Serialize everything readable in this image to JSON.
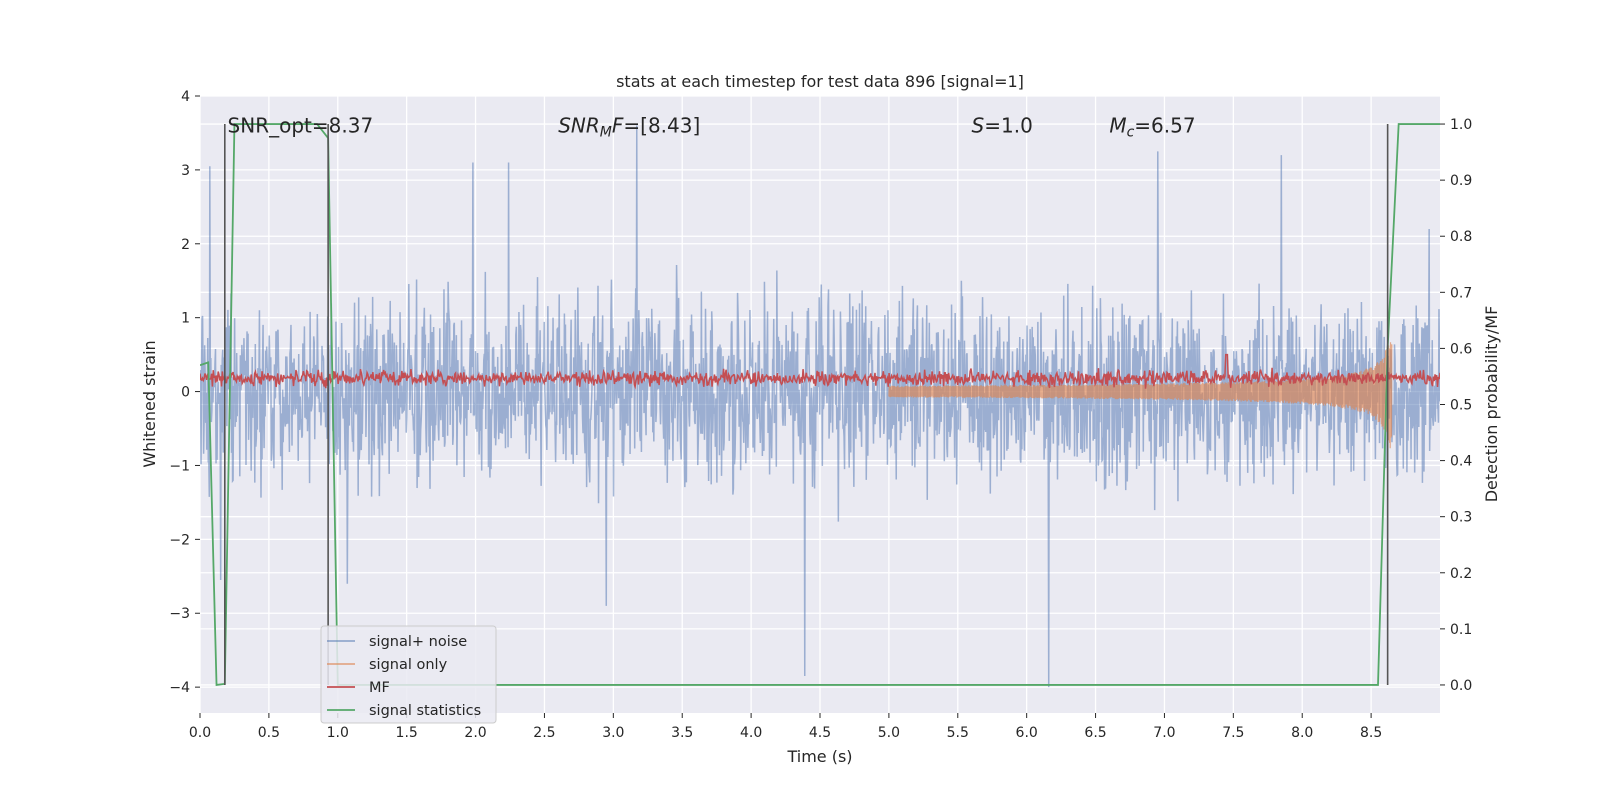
{
  "chart_data": {
    "type": "line",
    "title": "stats at each timestep for test data 896 [signal=1]",
    "xlabel": "Time (s)",
    "ylabel": "Whitened strain",
    "y2label": "Detection probability/MF",
    "xlim": [
      0,
      9.0
    ],
    "ylim": [
      -4.35,
      4.0
    ],
    "y2lim": [
      -0.05,
      1.05
    ],
    "x_ticks": [
      0.0,
      0.5,
      1.0,
      1.5,
      2.0,
      2.5,
      3.0,
      3.5,
      4.0,
      4.5,
      5.0,
      5.5,
      6.0,
      6.5,
      7.0,
      7.5,
      8.0,
      8.5
    ],
    "x_tick_labels": [
      "0.0",
      "0.5",
      "1.0",
      "1.5",
      "2.0",
      "2.5",
      "3.0",
      "3.5",
      "4.0",
      "4.5",
      "5.0",
      "5.5",
      "6.0",
      "6.5",
      "7.0",
      "7.5",
      "8.0",
      "8.5"
    ],
    "y_ticks": [
      4,
      3,
      2,
      1,
      0,
      -1,
      -2,
      -3,
      -4
    ],
    "y_tick_labels": [
      "4",
      "3",
      "2",
      "1",
      "0",
      "−1",
      "−2",
      "−3",
      "−4"
    ],
    "y2_ticks": [
      1.0,
      0.9,
      0.8,
      0.7,
      0.6,
      0.5,
      0.4,
      0.3,
      0.2,
      0.1,
      0.0
    ],
    "y2_tick_labels": [
      "1.0",
      "0.9",
      "0.8",
      "0.7",
      "0.6",
      "0.5",
      "0.4",
      "0.3",
      "0.2",
      "0.1",
      "0.0"
    ],
    "grid": true,
    "legend_position": "lower-left",
    "annotations": [
      {
        "text": "SNR_opt=8.37",
        "x": 0.2,
        "y": 3.6,
        "italic": false
      },
      {
        "text": "SNRMF=[8.43]",
        "x": 2.6,
        "y": 3.6,
        "italic": true
      },
      {
        "text": "S=1.0",
        "x": 5.6,
        "y": 3.6,
        "italic": true
      },
      {
        "text": "Mc=6.57",
        "x": 6.6,
        "y": 3.6,
        "italic": true
      }
    ],
    "series": [
      {
        "name": "signal+ noise",
        "color": "#4c72b0",
        "axis": "left",
        "kind": "noise",
        "x_range": [
          0,
          9.0
        ],
        "envelope": 1.7,
        "spikes": [
          {
            "x": 0.07,
            "y": 3.05
          },
          {
            "x": 0.15,
            "y": -2.55
          },
          {
            "x": 1.07,
            "y": -2.6
          },
          {
            "x": 1.98,
            "y": 3.1
          },
          {
            "x": 2.24,
            "y": 3.1
          },
          {
            "x": 2.95,
            "y": -2.9
          },
          {
            "x": 3.17,
            "y": 3.6
          },
          {
            "x": 4.39,
            "y": -3.85
          },
          {
            "x": 6.16,
            "y": -4.0
          },
          {
            "x": 6.95,
            "y": 3.25
          },
          {
            "x": 7.85,
            "y": 3.2
          },
          {
            "x": 8.92,
            "y": 2.2
          }
        ]
      },
      {
        "name": "signal only",
        "color": "#dd8452",
        "axis": "left",
        "kind": "chirp",
        "x_range": [
          5.0,
          8.65
        ],
        "peak_amplitude": 1.05
      },
      {
        "name": "MF",
        "color": "#c44e52",
        "axis": "left",
        "kind": "band",
        "x_range": [
          0,
          9.0
        ],
        "center": 0.18,
        "spread": 0.13
      },
      {
        "name": "signal statistics",
        "color": "#55a868",
        "axis": "right",
        "kind": "line",
        "points": [
          [
            0.0,
            0.57
          ],
          [
            0.06,
            0.575
          ],
          [
            0.12,
            0.0
          ],
          [
            0.18,
            0.002
          ],
          [
            0.25,
            1.0
          ],
          [
            0.85,
            1.0
          ],
          [
            0.93,
            0.975
          ],
          [
            1.0,
            0.0
          ],
          [
            8.55,
            0.0
          ],
          [
            8.62,
            0.6
          ],
          [
            8.7,
            1.0
          ],
          [
            9.0,
            1.0
          ]
        ]
      }
    ],
    "vertical_lines": [
      {
        "x": 0.18,
        "y2_range": [
          0.0,
          1.0
        ],
        "color": "#555555"
      },
      {
        "x": 0.93,
        "y2_range": [
          0.0,
          1.0
        ],
        "color": "#555555"
      },
      {
        "x": 8.62,
        "y2_range": [
          0.0,
          1.0
        ],
        "color": "#555555"
      }
    ]
  }
}
